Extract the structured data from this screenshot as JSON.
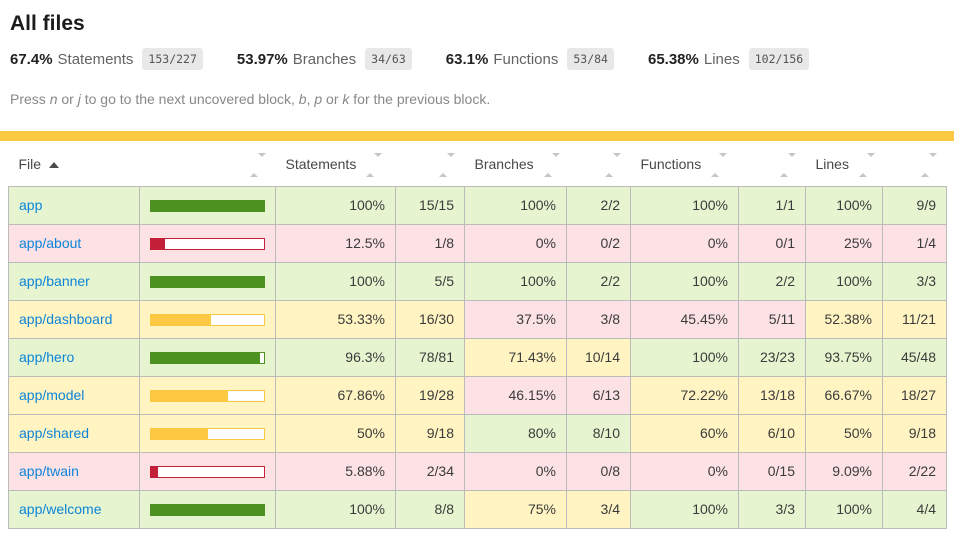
{
  "page": {
    "title": "All files"
  },
  "summary": [
    {
      "pct": "67.4%",
      "label": "Statements",
      "fraction": "153/227"
    },
    {
      "pct": "53.97%",
      "label": "Branches",
      "fraction": "34/63"
    },
    {
      "pct": "63.1%",
      "label": "Functions",
      "fraction": "53/84"
    },
    {
      "pct": "65.38%",
      "label": "Lines",
      "fraction": "102/156"
    }
  ],
  "hint": {
    "parts": [
      {
        "t": "Press ",
        "i": false
      },
      {
        "t": "n",
        "i": true
      },
      {
        "t": " or ",
        "i": false
      },
      {
        "t": "j",
        "i": true
      },
      {
        "t": " to go to the next uncovered block, ",
        "i": false
      },
      {
        "t": "b",
        "i": true
      },
      {
        "t": ", ",
        "i": false
      },
      {
        "t": "p",
        "i": true
      },
      {
        "t": " or ",
        "i": false
      },
      {
        "t": "k",
        "i": true
      },
      {
        "t": " for the previous block.",
        "i": false
      }
    ]
  },
  "table": {
    "columns": [
      "File",
      "Statements",
      "Branches",
      "Functions",
      "Lines"
    ],
    "sort": {
      "column": "File",
      "direction": "ascending"
    },
    "rows": [
      {
        "file": "app",
        "level": "high",
        "bar_pct": 100,
        "statements": {
          "pct": "100%",
          "raw": "15/15",
          "level": "high"
        },
        "branches": {
          "pct": "100%",
          "raw": "2/2",
          "level": "high"
        },
        "functions": {
          "pct": "100%",
          "raw": "1/1",
          "level": "high"
        },
        "lines": {
          "pct": "100%",
          "raw": "9/9",
          "level": "high"
        }
      },
      {
        "file": "app/about",
        "level": "low",
        "bar_pct": 12.5,
        "statements": {
          "pct": "12.5%",
          "raw": "1/8",
          "level": "low"
        },
        "branches": {
          "pct": "0%",
          "raw": "0/2",
          "level": "low"
        },
        "functions": {
          "pct": "0%",
          "raw": "0/1",
          "level": "low"
        },
        "lines": {
          "pct": "25%",
          "raw": "1/4",
          "level": "low"
        }
      },
      {
        "file": "app/banner",
        "level": "high",
        "bar_pct": 100,
        "statements": {
          "pct": "100%",
          "raw": "5/5",
          "level": "high"
        },
        "branches": {
          "pct": "100%",
          "raw": "2/2",
          "level": "high"
        },
        "functions": {
          "pct": "100%",
          "raw": "2/2",
          "level": "high"
        },
        "lines": {
          "pct": "100%",
          "raw": "3/3",
          "level": "high"
        }
      },
      {
        "file": "app/dashboard",
        "level": "medium",
        "bar_pct": 53.33,
        "statements": {
          "pct": "53.33%",
          "raw": "16/30",
          "level": "medium"
        },
        "branches": {
          "pct": "37.5%",
          "raw": "3/8",
          "level": "low"
        },
        "functions": {
          "pct": "45.45%",
          "raw": "5/11",
          "level": "low"
        },
        "lines": {
          "pct": "52.38%",
          "raw": "11/21",
          "level": "medium"
        }
      },
      {
        "file": "app/hero",
        "level": "high",
        "bar_pct": 96.3,
        "statements": {
          "pct": "96.3%",
          "raw": "78/81",
          "level": "high"
        },
        "branches": {
          "pct": "71.43%",
          "raw": "10/14",
          "level": "medium"
        },
        "functions": {
          "pct": "100%",
          "raw": "23/23",
          "level": "high"
        },
        "lines": {
          "pct": "93.75%",
          "raw": "45/48",
          "level": "high"
        }
      },
      {
        "file": "app/model",
        "level": "medium",
        "bar_pct": 67.86,
        "statements": {
          "pct": "67.86%",
          "raw": "19/28",
          "level": "medium"
        },
        "branches": {
          "pct": "46.15%",
          "raw": "6/13",
          "level": "low"
        },
        "functions": {
          "pct": "72.22%",
          "raw": "13/18",
          "level": "medium"
        },
        "lines": {
          "pct": "66.67%",
          "raw": "18/27",
          "level": "medium"
        }
      },
      {
        "file": "app/shared",
        "level": "medium",
        "bar_pct": 50,
        "statements": {
          "pct": "50%",
          "raw": "9/18",
          "level": "medium"
        },
        "branches": {
          "pct": "80%",
          "raw": "8/10",
          "level": "high"
        },
        "functions": {
          "pct": "60%",
          "raw": "6/10",
          "level": "medium"
        },
        "lines": {
          "pct": "50%",
          "raw": "9/18",
          "level": "medium"
        }
      },
      {
        "file": "app/twain",
        "level": "low",
        "bar_pct": 5.88,
        "statements": {
          "pct": "5.88%",
          "raw": "2/34",
          "level": "low"
        },
        "branches": {
          "pct": "0%",
          "raw": "0/8",
          "level": "low"
        },
        "functions": {
          "pct": "0%",
          "raw": "0/15",
          "level": "low"
        },
        "lines": {
          "pct": "9.09%",
          "raw": "2/22",
          "level": "low"
        }
      },
      {
        "file": "app/welcome",
        "level": "high",
        "bar_pct": 100,
        "statements": {
          "pct": "100%",
          "raw": "8/8",
          "level": "high"
        },
        "branches": {
          "pct": "75%",
          "raw": "3/4",
          "level": "medium"
        },
        "functions": {
          "pct": "100%",
          "raw": "3/3",
          "level": "high"
        },
        "lines": {
          "pct": "100%",
          "raw": "4/4",
          "level": "high"
        }
      }
    ]
  },
  "colors": {
    "high_bg": "#e6f5d0",
    "medium_bg": "#fff4c2",
    "low_bg": "#fce1e5",
    "high_fill": "#4d9221",
    "medium_fill": "#fdc942",
    "low_fill": "#c21f39",
    "status_line": "#fdc942",
    "link": "#0d84d9",
    "badge_bg": "#e8e8e8"
  }
}
